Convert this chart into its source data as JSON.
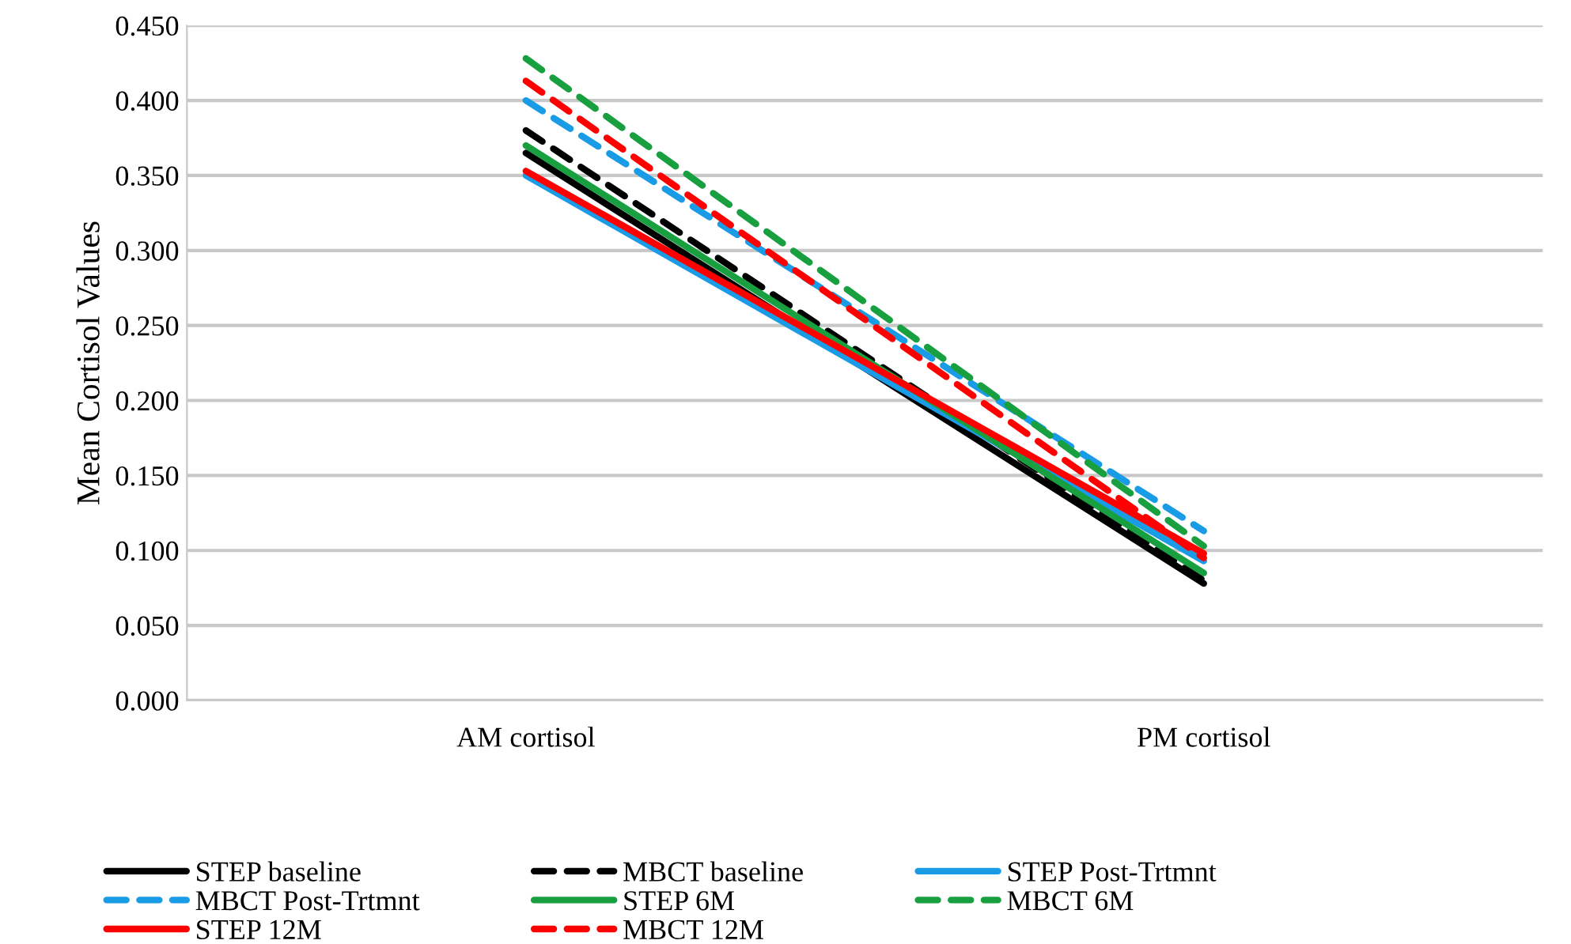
{
  "chart_data": {
    "type": "line",
    "ylabel": "Mean Cortisol Values",
    "categories": [
      "AM cortisol",
      "PM cortisol"
    ],
    "series": [
      {
        "name": "STEP baseline",
        "color": "#000000",
        "values": [
          0.365,
          0.078
        ],
        "line_style": "solid"
      },
      {
        "name": "MBCT baseline",
        "color": "#000000",
        "values": [
          0.38,
          0.08
        ],
        "line_style": "dashed"
      },
      {
        "name": "STEP Post-Trtmnt",
        "color": "#1a9be6",
        "values": [
          0.35,
          0.093
        ],
        "line_style": "solid"
      },
      {
        "name": "MBCT Post-Trtmnt",
        "color": "#1a9be6",
        "values": [
          0.4,
          0.113
        ],
        "line_style": "dashed"
      },
      {
        "name": "STEP 6M",
        "color": "#18a040",
        "values": [
          0.37,
          0.085
        ],
        "line_style": "solid"
      },
      {
        "name": "MBCT 6M",
        "color": "#18a040",
        "values": [
          0.428,
          0.103
        ],
        "line_style": "dashed"
      },
      {
        "name": "STEP 12M",
        "color": "#ff0000",
        "values": [
          0.353,
          0.098
        ],
        "line_style": "solid"
      },
      {
        "name": "MBCT 12M",
        "color": "#ff0000",
        "values": [
          0.413,
          0.095
        ],
        "line_style": "dashed"
      }
    ],
    "ylim": [
      0,
      0.45
    ],
    "yticks": [
      {
        "value": 0,
        "label": "0.000"
      },
      {
        "value": 0.05,
        "label": "0.050"
      },
      {
        "value": 0.1,
        "label": "0.100"
      },
      {
        "value": 0.15,
        "label": "0.150"
      },
      {
        "value": 0.2,
        "label": "0.200"
      },
      {
        "value": 0.25,
        "label": "0.250"
      },
      {
        "value": 0.3,
        "label": "0.300"
      },
      {
        "value": 0.35,
        "label": "0.350"
      },
      {
        "value": 0.4,
        "label": "0.400"
      },
      {
        "value": 0.45,
        "label": "0.450"
      }
    ],
    "grid": "y",
    "legend": "bottom",
    "marker": "none"
  }
}
